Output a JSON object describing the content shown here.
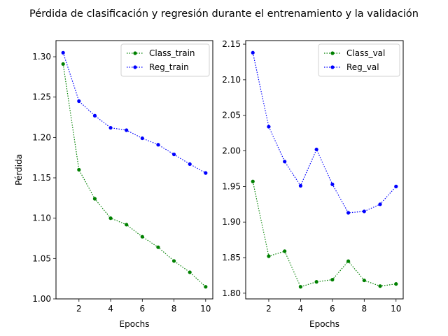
{
  "title": "Pérdida de clasificación y regresión durante el entrenamiento y la validación",
  "chart_data": [
    {
      "type": "line",
      "xlabel": "Epochs",
      "ylabel": "Pérdida",
      "xlim": [
        0.55,
        10.45
      ],
      "ylim": [
        1.0,
        1.32
      ],
      "x_ticks": [
        2,
        4,
        6,
        8,
        10
      ],
      "y_ticks": [
        1.0,
        1.05,
        1.1,
        1.15,
        1.2,
        1.25,
        1.3
      ],
      "y_tick_labels": [
        "1.00",
        "1.05",
        "1.10",
        "1.15",
        "1.20",
        "1.25",
        "1.30"
      ],
      "legend": "top-right",
      "grid": false,
      "x": [
        1,
        2,
        3,
        4,
        5,
        6,
        7,
        8,
        9,
        10
      ],
      "series": [
        {
          "name": "Class_train",
          "color": "#008000",
          "values": [
            1.291,
            1.16,
            1.124,
            1.1,
            1.092,
            1.077,
            1.064,
            1.047,
            1.033,
            1.015
          ]
        },
        {
          "name": "Reg_train",
          "color": "#0000ff",
          "values": [
            1.305,
            1.245,
            1.227,
            1.212,
            1.209,
            1.199,
            1.191,
            1.179,
            1.167,
            1.156
          ]
        }
      ]
    },
    {
      "type": "line",
      "xlabel": "Epochs",
      "ylabel": "",
      "xlim": [
        0.55,
        10.45
      ],
      "ylim": [
        1.792,
        2.155
      ],
      "x_ticks": [
        2,
        4,
        6,
        8,
        10
      ],
      "y_ticks": [
        1.8,
        1.85,
        1.9,
        1.95,
        2.0,
        2.05,
        2.1,
        2.15
      ],
      "y_tick_labels": [
        "1.80",
        "1.85",
        "1.90",
        "1.95",
        "2.00",
        "2.05",
        "2.10",
        "2.15"
      ],
      "legend": "top-right",
      "grid": false,
      "x": [
        1,
        2,
        3,
        4,
        5,
        6,
        7,
        8,
        9,
        10
      ],
      "series": [
        {
          "name": "Class_val",
          "color": "#008000",
          "values": [
            1.957,
            1.852,
            1.859,
            1.809,
            1.816,
            1.819,
            1.845,
            1.818,
            1.81,
            1.813
          ]
        },
        {
          "name": "Reg_val",
          "color": "#0000ff",
          "values": [
            2.138,
            2.034,
            1.985,
            1.951,
            2.002,
            1.953,
            1.913,
            1.915,
            1.925,
            1.95
          ]
        }
      ]
    }
  ]
}
